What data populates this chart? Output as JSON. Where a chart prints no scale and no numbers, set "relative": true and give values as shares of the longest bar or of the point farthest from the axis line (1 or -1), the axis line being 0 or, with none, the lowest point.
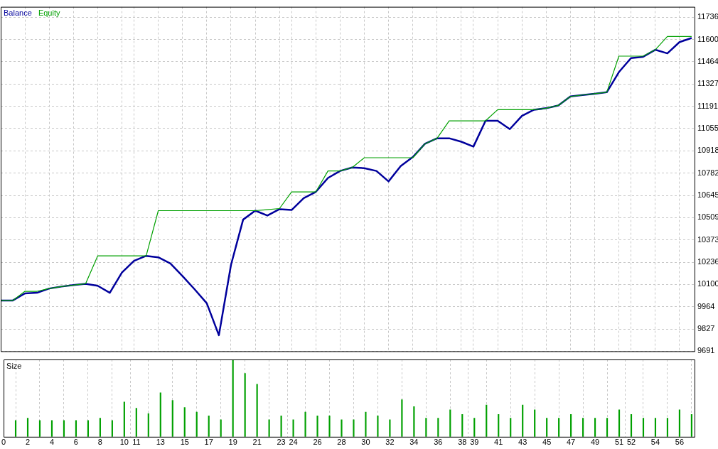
{
  "chart_data": [
    {
      "type": "line",
      "legend": "top left",
      "grid": true,
      "tick_labels": "y",
      "x": [
        0,
        1,
        2,
        3,
        4,
        5,
        6,
        7,
        8,
        9,
        10,
        11,
        12,
        13,
        14,
        15,
        16,
        17,
        18,
        19,
        20,
        21,
        22,
        23,
        24,
        25,
        26,
        27,
        28,
        29,
        30,
        31,
        32,
        33,
        34,
        35,
        36,
        37,
        38,
        39,
        40,
        41,
        42,
        43,
        44,
        45,
        46,
        47,
        48,
        49,
        50,
        51,
        52,
        53,
        54,
        55,
        56,
        57
      ],
      "xlim": [
        0,
        57.3
      ],
      "xticks": [
        0,
        2,
        4,
        6,
        8,
        10,
        11,
        13,
        15,
        17,
        19,
        21,
        23,
        24,
        26,
        28,
        30,
        32,
        34,
        36,
        38,
        39,
        41,
        43,
        45,
        47,
        49,
        51,
        52,
        54,
        56
      ],
      "ylim": [
        9691,
        11800
      ],
      "yticks": [
        9691,
        9827,
        9964,
        10100,
        10236,
        10373,
        10509,
        10645,
        10782,
        10918,
        11055,
        11191,
        11327,
        11464,
        11600,
        11736
      ],
      "series": [
        {
          "name": "Equity",
          "color": "#00a000",
          "values": [
            10002,
            10002,
            10058,
            10058,
            10075,
            10087,
            10096,
            10104,
            10275,
            10275,
            10275,
            10275,
            10275,
            10552,
            10552,
            10552,
            10552,
            10552,
            10552,
            10552,
            10552,
            10552,
            10558,
            10565,
            10667,
            10667,
            10667,
            10795,
            10795,
            10816,
            10876,
            10876,
            10876,
            10876,
            10876,
            10961,
            10995,
            11102,
            11102,
            11102,
            11102,
            11170,
            11170,
            11170,
            11170,
            11179,
            11196,
            11251,
            11260,
            11268,
            11277,
            11498,
            11498,
            11498,
            11537,
            11618,
            11618,
            11618
          ]
        },
        {
          "name": "Balance",
          "color": "#00009c",
          "values": [
            10002,
            10002,
            10045,
            10049,
            10075,
            10087,
            10096,
            10104,
            10092,
            10049,
            10173,
            10245,
            10275,
            10266,
            10228,
            10151,
            10070,
            9985,
            9789,
            10220,
            10497,
            10552,
            10522,
            10561,
            10556,
            10629,
            10667,
            10752,
            10795,
            10816,
            10812,
            10795,
            10731,
            10825,
            10880,
            10961,
            10995,
            10995,
            10974,
            10944,
            11102,
            11102,
            11051,
            11132,
            11170,
            11179,
            11196,
            11251,
            11260,
            11268,
            11277,
            11400,
            11486,
            11494,
            11537,
            11515,
            11584,
            11609
          ]
        }
      ]
    },
    {
      "type": "bar",
      "title": "Size",
      "relative": true,
      "grid": "x",
      "tick_labels": "x",
      "color": "#00a000",
      "x": [
        1,
        2,
        3,
        4,
        5,
        6,
        7,
        8,
        9,
        10,
        11,
        12,
        13,
        14,
        15,
        16,
        17,
        18,
        19,
        20,
        21,
        22,
        23,
        24,
        25,
        26,
        27,
        28,
        29,
        30,
        31,
        32,
        33,
        34,
        35,
        36,
        37,
        38,
        39,
        40,
        41,
        42,
        43,
        44,
        45,
        46,
        47,
        48,
        49,
        50,
        51,
        52,
        53,
        54,
        55,
        56,
        57
      ],
      "xlim": [
        0,
        57.3
      ],
      "xticks": [
        0,
        2,
        4,
        6,
        8,
        10,
        11,
        13,
        15,
        17,
        19,
        21,
        23,
        24,
        26,
        28,
        30,
        32,
        34,
        36,
        38,
        39,
        41,
        43,
        45,
        47,
        49,
        51,
        52,
        54,
        56
      ],
      "values": [
        0.21,
        0.24,
        0.21,
        0.21,
        0.21,
        0.21,
        0.21,
        0.24,
        0.21,
        0.45,
        0.37,
        0.3,
        0.57,
        0.47,
        0.38,
        0.32,
        0.27,
        0.22,
        1,
        0.82,
        0.68,
        0.22,
        0.27,
        0.22,
        0.32,
        0.27,
        0.27,
        0.22,
        0.22,
        0.32,
        0.27,
        0.22,
        0.48,
        0.39,
        0.24,
        0.24,
        0.35,
        0.29,
        0.24,
        0.41,
        0.29,
        0.24,
        0.41,
        0.35,
        0.24,
        0.24,
        0.29,
        0.24,
        0.24,
        0.24,
        0.35,
        0.29,
        0.24,
        0.24,
        0.24,
        0.35,
        0.29
      ]
    }
  ]
}
